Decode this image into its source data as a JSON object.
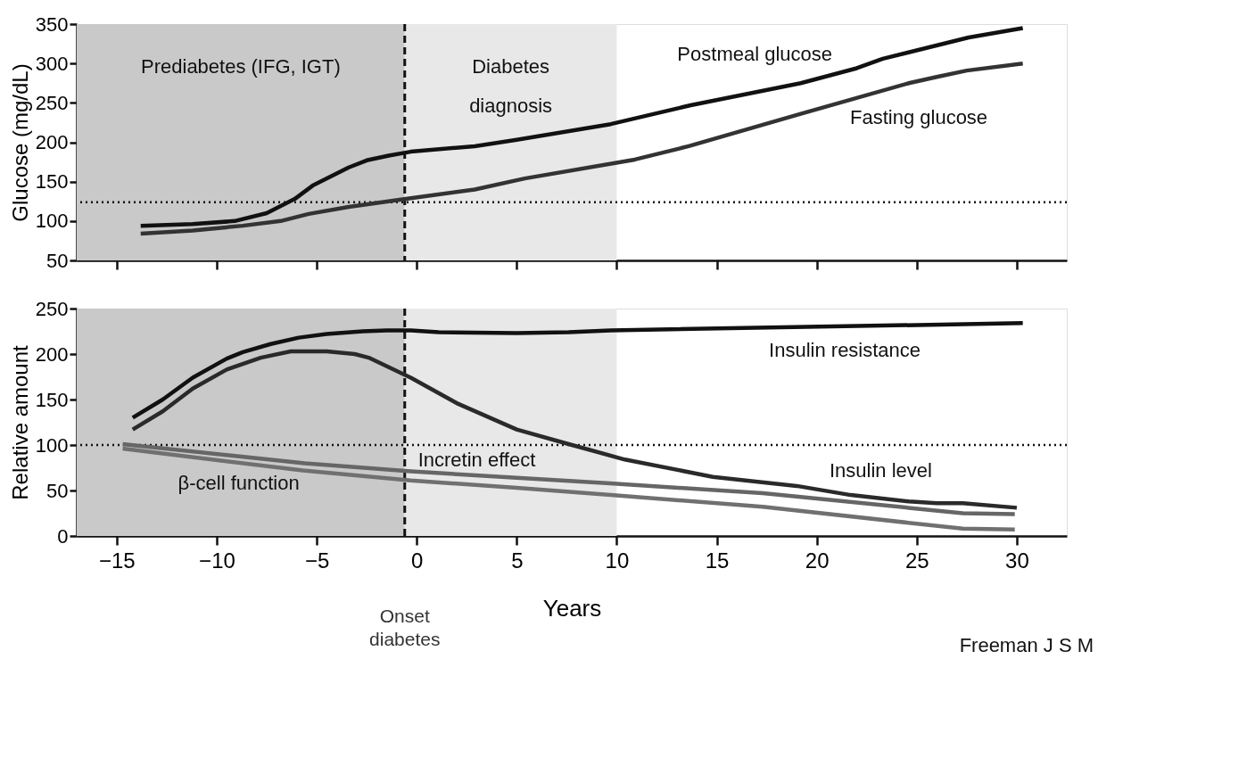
{
  "chart_data": [
    {
      "type": "line",
      "ylabel": "Glucose (mg/dL)",
      "xlim": [
        -17,
        32.5
      ],
      "ylim": [
        50,
        350
      ],
      "xticks": [
        -15,
        -10,
        -5,
        0,
        5,
        10,
        15,
        20,
        25,
        30
      ],
      "yticks": [
        50,
        100,
        150,
        200,
        250,
        300,
        350
      ],
      "tick_labels": "y",
      "grid": false,
      "line_style": "solid",
      "series": [
        {
          "name": "Postmeal glucose",
          "color": "#111111",
          "x": [
            -13.8,
            -11.2,
            -9.1,
            -7.5,
            -6.1,
            -5.2,
            -3.4,
            -2.5,
            -1.4,
            -0.3,
            2.9,
            5.0,
            9.7,
            13.7,
            19.2,
            22.0,
            23.3,
            27.6,
            30.3
          ],
          "values": [
            94,
            96,
            100,
            110,
            128,
            145,
            168,
            177,
            183,
            188,
            195,
            203,
            223,
            247,
            275,
            294,
            306,
            333,
            345
          ]
        },
        {
          "name": "Fasting glucose",
          "color": "#333333",
          "x": [
            -13.8,
            -11.2,
            -8.7,
            -6.8,
            -5.4,
            -3.4,
            -0.3,
            2.9,
            5.4,
            10.9,
            13.6,
            19.2,
            24.6,
            26.0,
            27.5,
            30.3
          ],
          "values": [
            84,
            88,
            94,
            100,
            109,
            118,
            129,
            140,
            154,
            178,
            195,
            236,
            275,
            283,
            291,
            300
          ]
        }
      ],
      "bands": [
        {
          "axis": "x",
          "from": -17,
          "to": -0.6,
          "label": "Prediabetes (IFG, IGT)",
          "color": "#c9c9c9"
        },
        {
          "axis": "x",
          "from": -0.6,
          "to": 10,
          "label": "Diabetes diagnosis",
          "color": "#e8e8e8"
        }
      ],
      "ref_lines": [
        {
          "axis": "y",
          "value": 124,
          "line_style": "dotted",
          "color": "#111111"
        },
        {
          "axis": "x",
          "value": -0.6,
          "line_style": "dashed",
          "color": "#111111"
        }
      ]
    },
    {
      "type": "line",
      "xlabel": "Years",
      "ylabel": "Relative amount",
      "xlim": [
        -17,
        32.5
      ],
      "ylim": [
        0,
        250
      ],
      "xticks": [
        -15,
        -10,
        -5,
        0,
        5,
        10,
        15,
        20,
        25,
        30
      ],
      "yticks": [
        0,
        50,
        100,
        150,
        200,
        250
      ],
      "grid": false,
      "line_style": "solid",
      "series": [
        {
          "name": "Insulin resistance",
          "color": "#111111",
          "x": [
            -14.2,
            -12.7,
            -11.2,
            -9.5,
            -8.7,
            -7.3,
            -5.9,
            -4.5,
            -2.7,
            -1.5,
            -0.3,
            1.1,
            5.0,
            7.6,
            9.7,
            30.3
          ],
          "values": [
            130,
            150,
            174,
            195,
            202,
            211,
            218,
            222,
            225,
            226,
            226,
            224,
            223,
            224,
            226,
            234
          ]
        },
        {
          "name": "Insulin level",
          "color": "#2a2a2a",
          "x": [
            -14.2,
            -12.7,
            -11.2,
            -9.5,
            -7.8,
            -6.3,
            -4.5,
            -3.1,
            -2.4,
            -0.3,
            2.0,
            5.0,
            7.6,
            10.4,
            14.8,
            19.0,
            21.7,
            24.6,
            26.0,
            27.3,
            30.0
          ],
          "values": [
            117,
            137,
            162,
            183,
            196,
            203,
            203,
            200,
            196,
            174,
            146,
            117,
            101,
            84,
            65,
            55,
            45,
            38,
            36,
            36,
            31
          ]
        },
        {
          "name": "Incretin effect",
          "color": "#666666",
          "x": [
            -14.7,
            -5.6,
            -0.3,
            5.0,
            9.5,
            17.3,
            27.3,
            29.9
          ],
          "values": [
            101,
            80,
            71,
            64,
            58,
            47,
            25,
            24
          ]
        },
        {
          "name": "β-cell function",
          "color": "#707070",
          "x": [
            -14.7,
            -5.7,
            -0.3,
            5.0,
            9.7,
            17.3,
            27.3,
            29.9
          ],
          "values": [
            96,
            72,
            61,
            53,
            45,
            32,
            8,
            7
          ]
        }
      ],
      "bands": [
        {
          "axis": "x",
          "from": -17,
          "to": -0.6,
          "color": "#c9c9c9"
        },
        {
          "axis": "x",
          "from": -0.6,
          "to": 10,
          "color": "#e8e8e8"
        }
      ],
      "ref_lines": [
        {
          "axis": "y",
          "value": 100,
          "line_style": "dotted",
          "color": "#111111"
        },
        {
          "axis": "x",
          "value": -0.6,
          "line_style": "dashed",
          "color": "#111111"
        }
      ],
      "annotations": [
        "Onset diabetes",
        "Freeman J S M"
      ]
    }
  ]
}
